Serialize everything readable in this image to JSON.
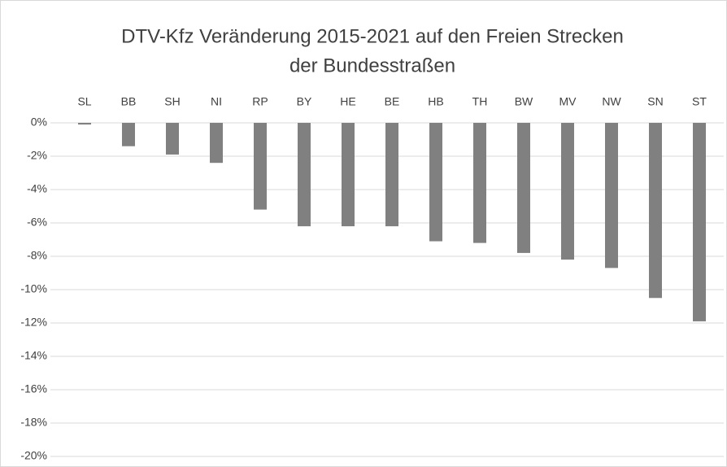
{
  "chart_data": {
    "type": "bar",
    "title": [
      "DTV-Kfz Veränderung 2015-2021 auf den Freien Strecken",
      "der Bundesstraßen"
    ],
    "categories": [
      "SL",
      "BB",
      "SH",
      "NI",
      "RP",
      "BY",
      "HE",
      "BE",
      "HB",
      "TH",
      "BW",
      "MV",
      "NW",
      "SN",
      "ST"
    ],
    "values": [
      -0.1,
      -1.4,
      -1.9,
      -2.4,
      -5.2,
      -6.2,
      -6.2,
      -6.2,
      -7.1,
      -7.2,
      -7.8,
      -8.2,
      -8.7,
      -10.5,
      -11.9
    ],
    "color": "#808080",
    "ylim": [
      -20,
      0
    ],
    "yticks": [
      {
        "value": 0,
        "label": "0%"
      },
      {
        "value": -2,
        "label": "-2%"
      },
      {
        "value": -4,
        "label": "-4%"
      },
      {
        "value": -6,
        "label": "-6%"
      },
      {
        "value": -8,
        "label": "-8%"
      },
      {
        "value": -10,
        "label": "-10%"
      },
      {
        "value": -12,
        "label": "-12%"
      },
      {
        "value": -14,
        "label": "-14%"
      },
      {
        "value": -16,
        "label": "-16%"
      },
      {
        "value": -18,
        "label": "-18%"
      },
      {
        "value": -20,
        "label": "-20%"
      }
    ],
    "grid": true
  }
}
